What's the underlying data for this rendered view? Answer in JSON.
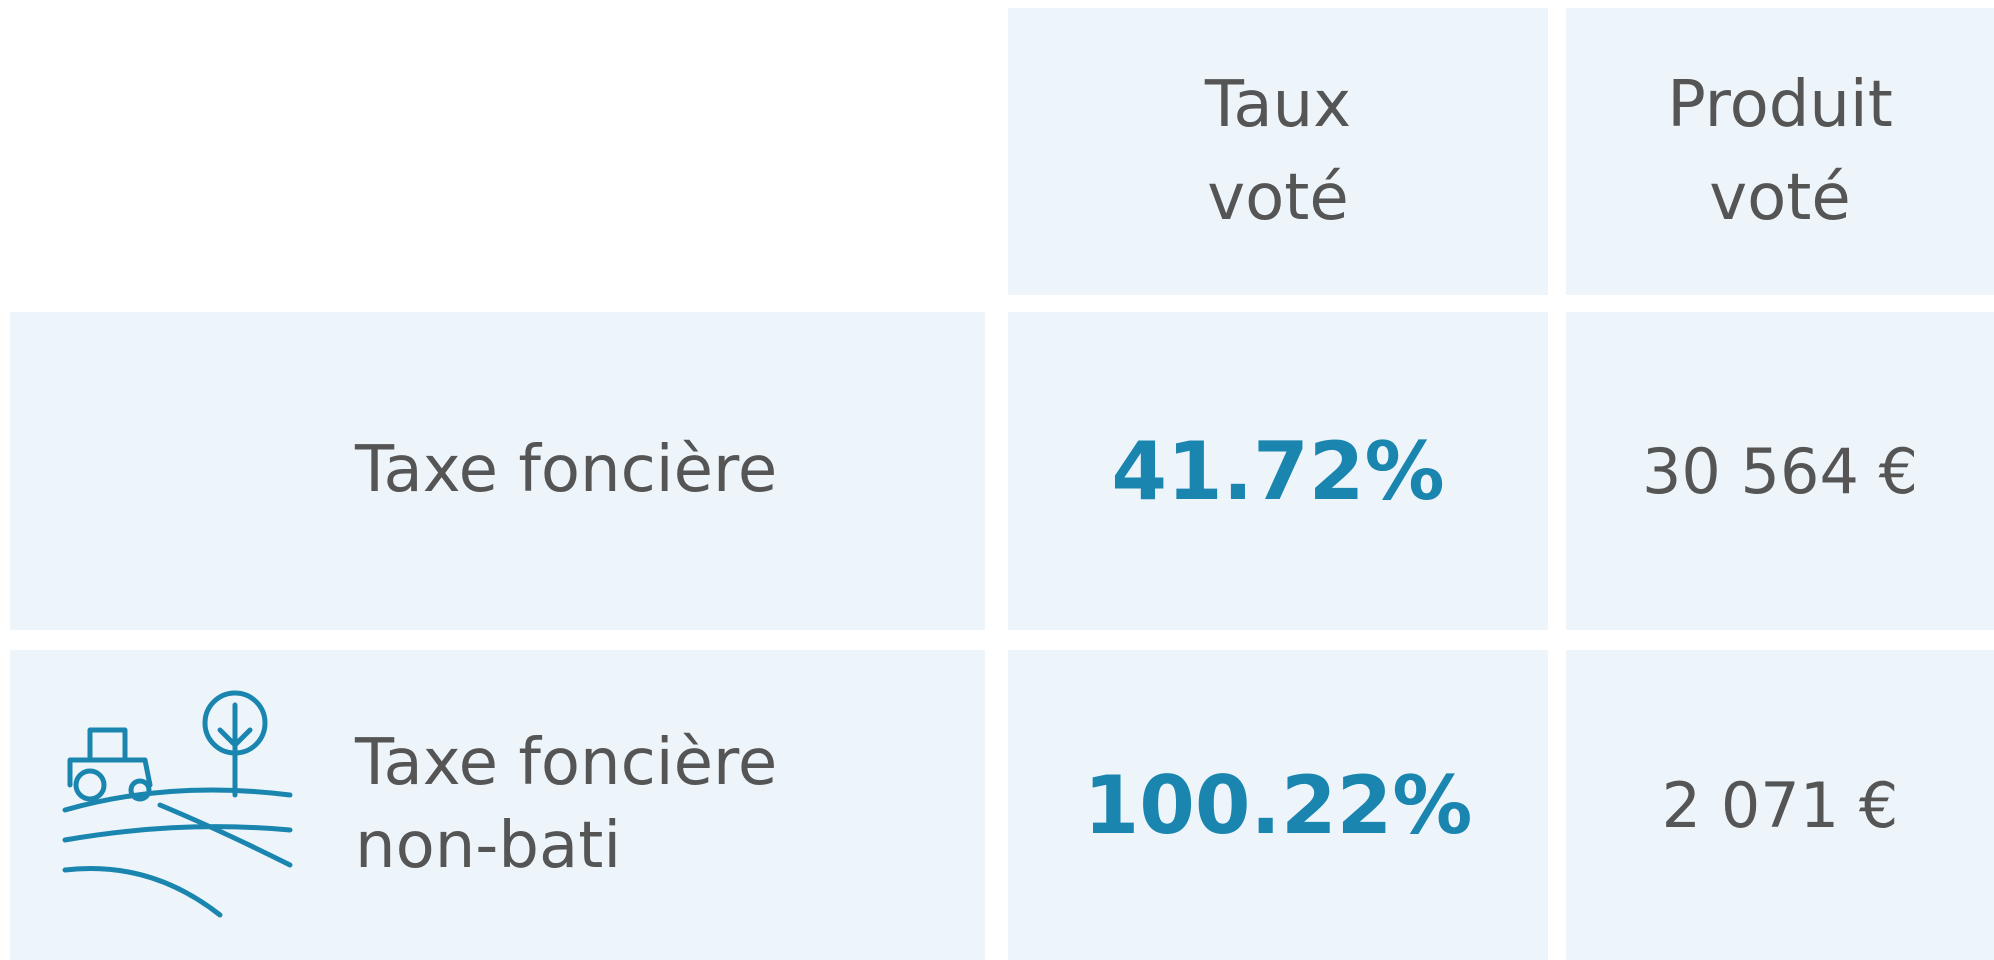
{
  "table": {
    "headers": [
      "Taux voté",
      "Produit voté"
    ],
    "rows": [
      [
        "Taxe foncière",
        "41.72%",
        "30 564 €"
      ],
      [
        "Taxe foncière non-bati",
        "100.22%",
        "2 071 €"
      ]
    ]
  }
}
